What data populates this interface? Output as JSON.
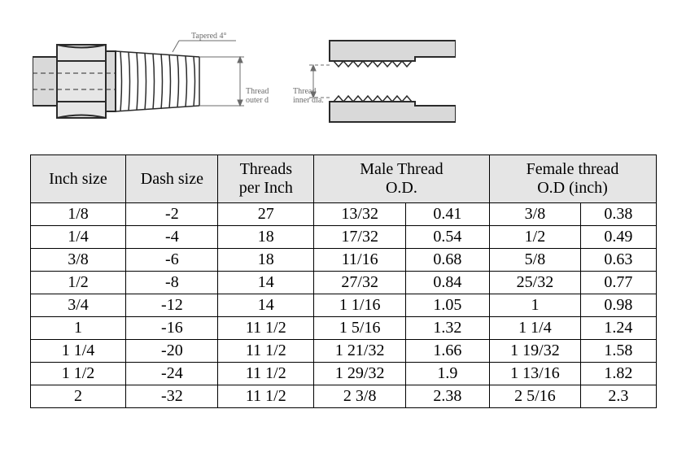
{
  "diagram": {
    "labels": {
      "tapered": "Tapered 4°",
      "thread_outer": "Thread\nouter dia.",
      "thread_inner": "Thread\ninner dia."
    },
    "colors": {
      "stroke": "#2b2b2b",
      "fill_light": "#d9d9d9",
      "thread_shade": "#a8a8a8",
      "label": "#6b6b6b"
    },
    "label_fontsize": 10
  },
  "table": {
    "header_bg": "#e5e5e5",
    "border_color": "#000000",
    "columns": [
      {
        "key": "inch",
        "label": "Inch size",
        "span": 1
      },
      {
        "key": "dash",
        "label": "Dash size",
        "span": 1
      },
      {
        "key": "tpi",
        "label": "Threads\nper Inch",
        "span": 1
      },
      {
        "key": "mod",
        "label": "Male Thread\nO.D.",
        "span": 2
      },
      {
        "key": "fod",
        "label": "Female thread\nO.D (inch)",
        "span": 2
      }
    ],
    "rows": [
      [
        "1/8",
        "-2",
        "27",
        "13/32",
        "0.41",
        "3/8",
        "0.38"
      ],
      [
        "1/4",
        "-4",
        "18",
        "17/32",
        "0.54",
        "1/2",
        "0.49"
      ],
      [
        "3/8",
        "-6",
        "18",
        "11/16",
        "0.68",
        "5/8",
        "0.63"
      ],
      [
        "1/2",
        "-8",
        "14",
        "27/32",
        "0.84",
        "25/32",
        "0.77"
      ],
      [
        "3/4",
        "-12",
        "14",
        "1 1/16",
        "1.05",
        "1",
        "0.98"
      ],
      [
        "1",
        "-16",
        "11 1/2",
        "1 5/16",
        "1.32",
        "1 1/4",
        "1.24"
      ],
      [
        "1 1/4",
        "-20",
        "11 1/2",
        "1 21/32",
        "1.66",
        "1 19/32",
        "1.58"
      ],
      [
        "1 1/2",
        "-24",
        "11 1/2",
        "1 29/32",
        "1.9",
        "1 13/16",
        "1.82"
      ],
      [
        "2",
        "-32",
        "11 1/2",
        "2 3/8",
        "2.38",
        "2 5/16",
        "2.3"
      ]
    ]
  }
}
